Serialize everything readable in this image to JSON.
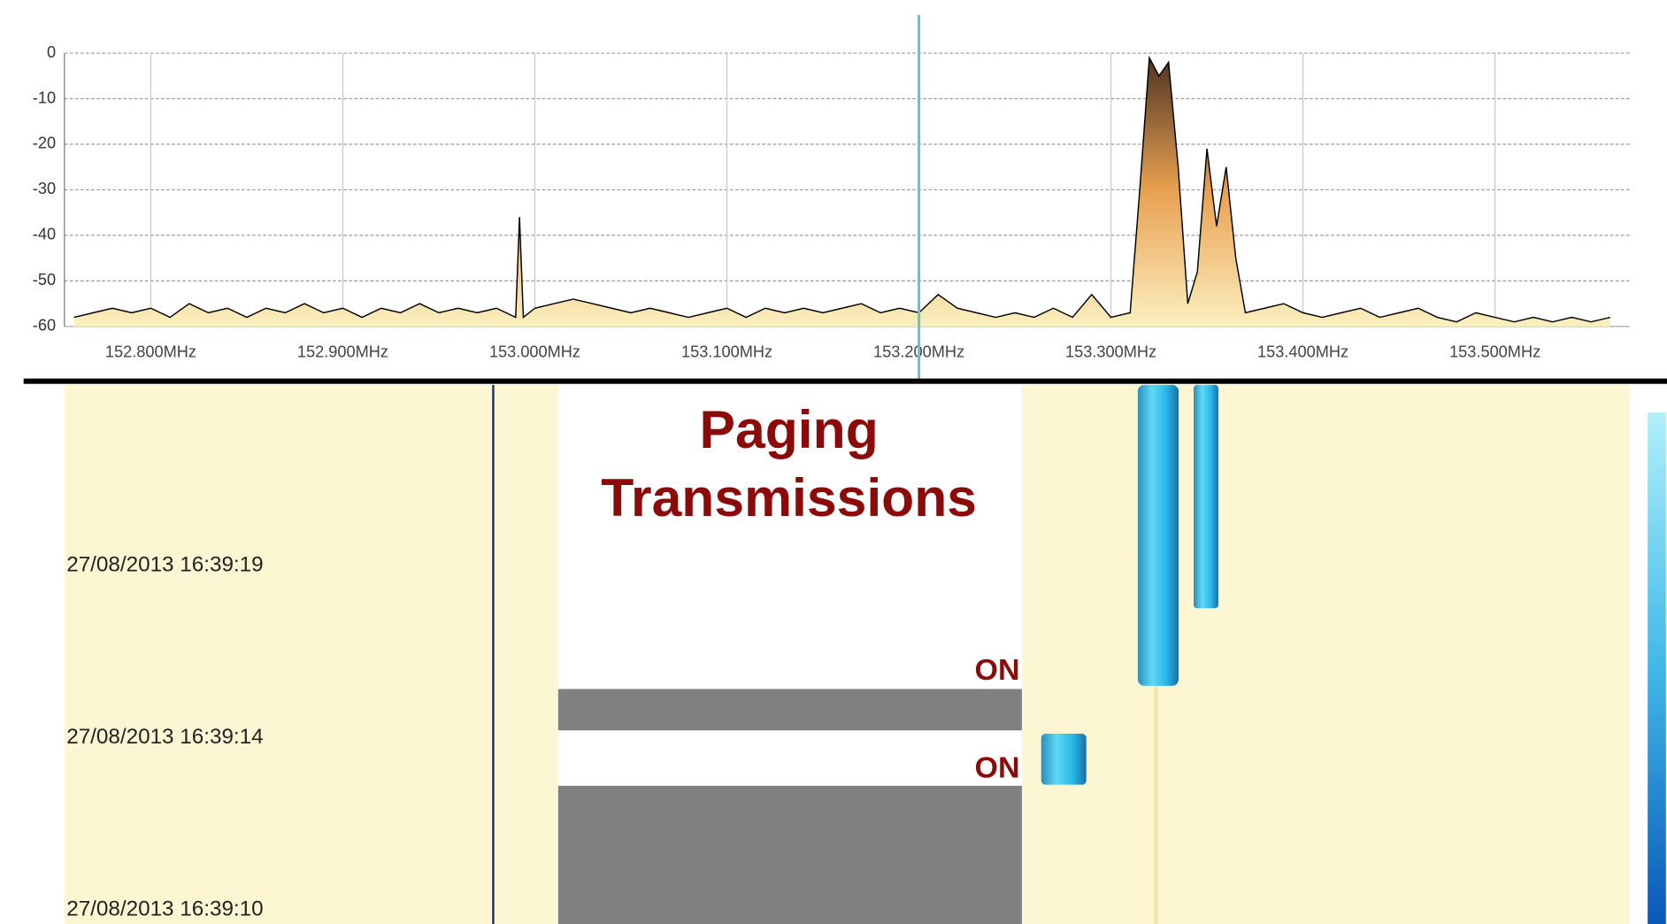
{
  "chart_data": {
    "type": "line",
    "x": [
      152.76,
      152.77,
      152.78,
      152.79,
      152.8,
      152.81,
      152.82,
      152.83,
      152.84,
      152.85,
      152.86,
      152.87,
      152.88,
      152.89,
      152.9,
      152.91,
      152.92,
      152.93,
      152.94,
      152.95,
      152.96,
      152.97,
      152.98,
      152.99,
      152.992,
      152.994,
      153.0,
      153.01,
      153.02,
      153.03,
      153.04,
      153.05,
      153.06,
      153.07,
      153.08,
      153.09,
      153.1,
      153.11,
      153.12,
      153.13,
      153.14,
      153.15,
      153.16,
      153.17,
      153.18,
      153.19,
      153.2,
      153.21,
      153.22,
      153.23,
      153.24,
      153.25,
      153.26,
      153.27,
      153.28,
      153.29,
      153.3,
      153.31,
      153.315,
      153.32,
      153.325,
      153.33,
      153.335,
      153.34,
      153.345,
      153.35,
      153.355,
      153.36,
      153.365,
      153.37,
      153.38,
      153.39,
      153.4,
      153.41,
      153.42,
      153.43,
      153.44,
      153.45,
      153.46,
      153.47,
      153.48,
      153.49,
      153.5,
      153.51,
      153.52,
      153.53,
      153.54,
      153.55,
      153.56
    ],
    "values": [
      -58,
      -57,
      -56,
      -57,
      -56,
      -58,
      -55,
      -57,
      -56,
      -58,
      -56,
      -57,
      -55,
      -57,
      -56,
      -58,
      -56,
      -57,
      -55,
      -57,
      -56,
      -57,
      -56,
      -58,
      -36,
      -58,
      -56,
      -55,
      -54,
      -55,
      -56,
      -57,
      -56,
      -57,
      -58,
      -57,
      -56,
      -58,
      -56,
      -57,
      -56,
      -57,
      -56,
      -55,
      -57,
      -56,
      -57,
      -53,
      -56,
      -57,
      -58,
      -57,
      -58,
      -56,
      -58,
      -53,
      -58,
      -57,
      -30,
      -1,
      -5,
      -2,
      -25,
      -55,
      -48,
      -21,
      -38,
      -25,
      -45,
      -57,
      -56,
      -55,
      -57,
      -58,
      -57,
      -56,
      -58,
      -57,
      -56,
      -58,
      -59,
      -57,
      -58,
      -59,
      -58,
      -59,
      -58,
      -59,
      -58
    ],
    "color": "#000000",
    "fill_colors": [
      "#4a3020",
      "#e8a050",
      "#fbf0c0"
    ],
    "marker_x": 153.2,
    "marker_color": "#5cc8c8",
    "xlim": [
      152.755,
      153.57
    ],
    "ylim": [
      -60,
      0
    ],
    "xticks": [
      {
        "value": 152.8,
        "label": "152.800MHz"
      },
      {
        "value": 152.9,
        "label": "152.900MHz"
      },
      {
        "value": 153.0,
        "label": "153.000MHz"
      },
      {
        "value": 153.1,
        "label": "153.100MHz"
      },
      {
        "value": 153.2,
        "label": "153.200MHz"
      },
      {
        "value": 153.3,
        "label": "153.300MHz"
      },
      {
        "value": 153.4,
        "label": "153.400MHz"
      },
      {
        "value": 153.5,
        "label": "153.500MHz"
      }
    ],
    "yticks": [
      0,
      -10,
      -20,
      -30,
      -40,
      -50,
      -60
    ],
    "grid": true
  },
  "waterfall": {
    "timestamps": [
      "27/08/2013 16:39:19",
      "27/08/2013 16:39:14",
      "27/08/2013 16:39:10"
    ],
    "annotation": [
      "Paging",
      "Transmissions"
    ],
    "on_labels": [
      "ON",
      "ON"
    ]
  }
}
